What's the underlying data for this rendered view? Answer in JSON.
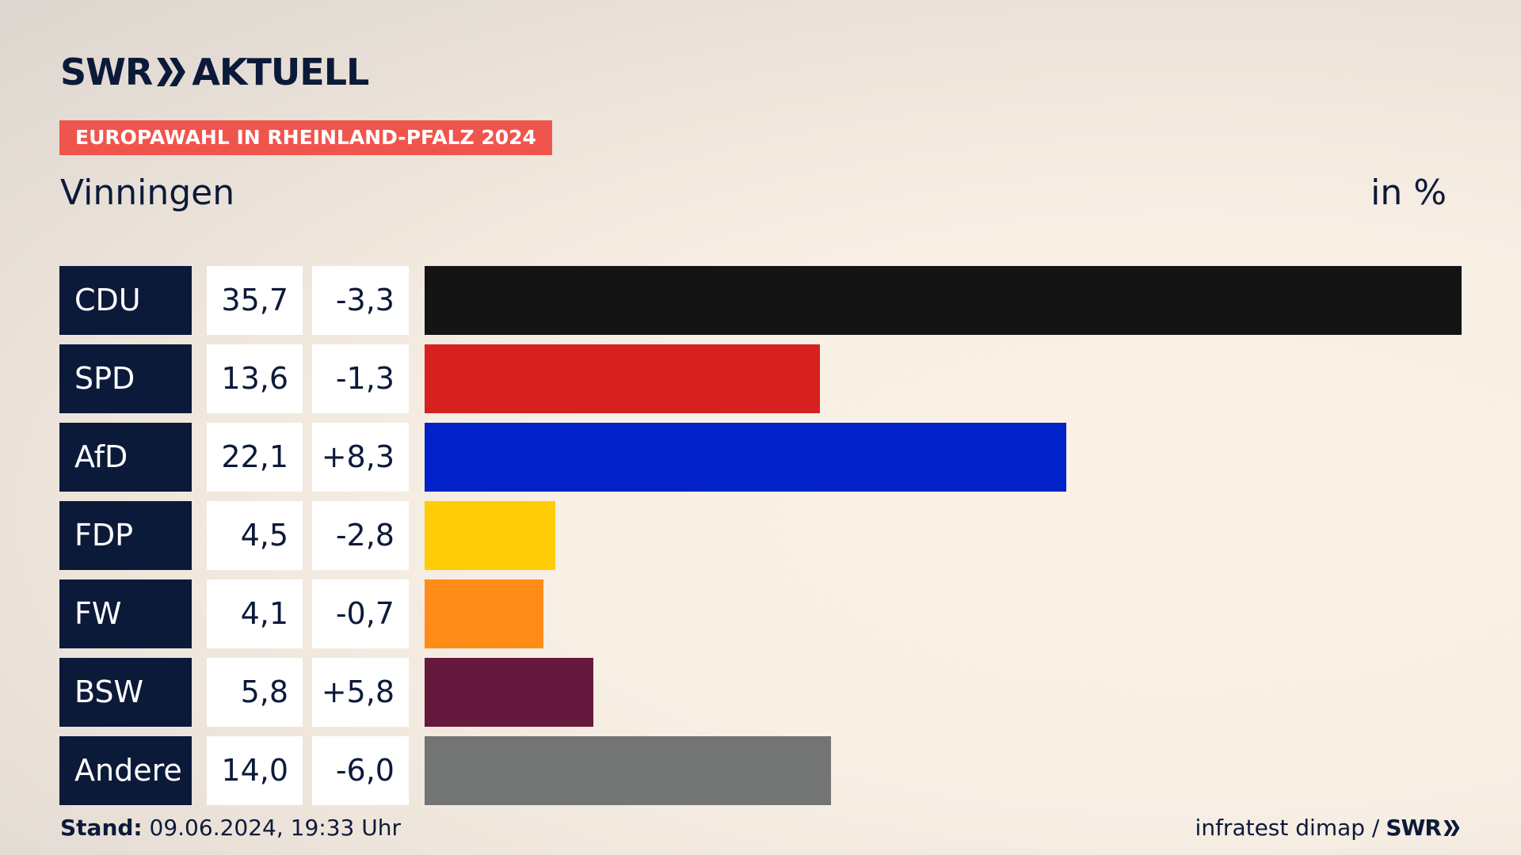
{
  "brand": {
    "logo_left": "SWR",
    "logo_right": "AKTUELL",
    "footer_brand": "SWR"
  },
  "badge": "EUROPAWAHL IN RHEINLAND-PFALZ 2024",
  "region": "Vinningen",
  "unit": "in %",
  "footer": {
    "stand_label": "Stand:",
    "stand_value": "09.06.2024, 19:33 Uhr",
    "source": "infratest dimap /"
  },
  "chart_data": {
    "type": "bar",
    "title": "Vinningen",
    "ylabel": "in %",
    "categories": [
      "CDU",
      "SPD",
      "AfD",
      "FDP",
      "FW",
      "BSW",
      "Andere"
    ],
    "values": [
      35.7,
      13.6,
      22.1,
      4.5,
      4.1,
      5.8,
      14.0
    ],
    "values_display": [
      "35,7",
      "13,6",
      "22,1",
      "4,5",
      "4,1",
      "5,8",
      "14,0"
    ],
    "diffs": [
      -3.3,
      -1.3,
      8.3,
      -2.8,
      -0.7,
      5.8,
      -6.0
    ],
    "diffs_display": [
      "-3,3",
      "-1,3",
      "+8,3",
      "-2,8",
      "-0,7",
      "+5,8",
      "-6,0"
    ],
    "colors": [
      "#141414",
      "#d7211f",
      "#0022c8",
      "#ffcc07",
      "#ff8c18",
      "#65193c",
      "#737474"
    ],
    "orientation": "horizontal",
    "xlim": [
      0,
      35.7
    ]
  },
  "colors": {
    "navy": "#0c1a3a",
    "badge": "#f0554d"
  }
}
